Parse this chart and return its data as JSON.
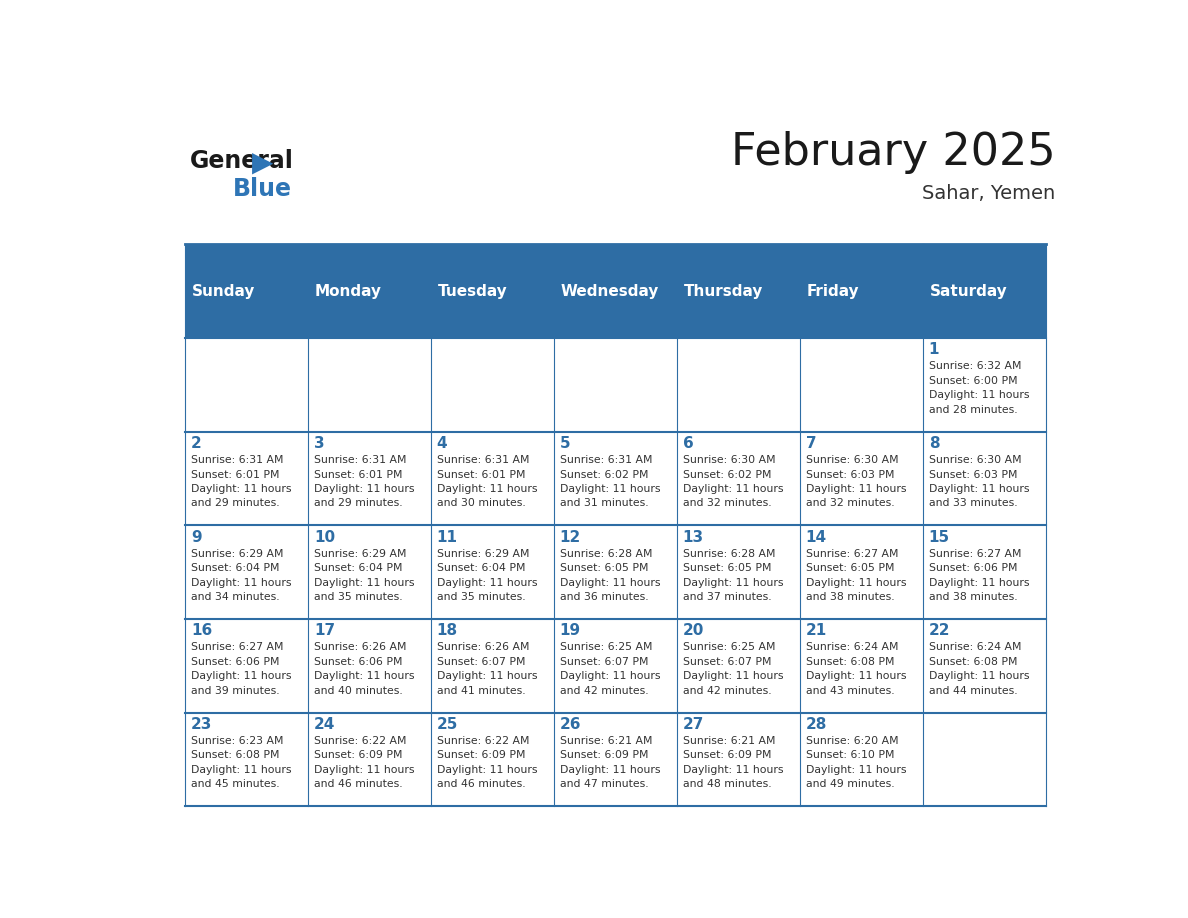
{
  "title": "February 2025",
  "subtitle": "Sahar, Yemen",
  "days_of_week": [
    "Sunday",
    "Monday",
    "Tuesday",
    "Wednesday",
    "Thursday",
    "Friday",
    "Saturday"
  ],
  "header_bg": "#2E6DA4",
  "header_text": "#FFFFFF",
  "cell_bg_light": "#FFFFFF",
  "day_number_color": "#2E6DA4",
  "info_text_color": "#333333",
  "border_color": "#2E6DA4",
  "title_color": "#1a1a1a",
  "subtitle_color": "#333333",
  "logo_general_color": "#1a1a1a",
  "logo_blue_color": "#2E75B6",
  "calendar_data": [
    [
      null,
      null,
      null,
      null,
      null,
      null,
      1
    ],
    [
      2,
      3,
      4,
      5,
      6,
      7,
      8
    ],
    [
      9,
      10,
      11,
      12,
      13,
      14,
      15
    ],
    [
      16,
      17,
      18,
      19,
      20,
      21,
      22
    ],
    [
      23,
      24,
      25,
      26,
      27,
      28,
      null
    ]
  ],
  "sunrise_data": {
    "1": "Sunrise: 6:32 AM\nSunset: 6:00 PM\nDaylight: 11 hours\nand 28 minutes.",
    "2": "Sunrise: 6:31 AM\nSunset: 6:01 PM\nDaylight: 11 hours\nand 29 minutes.",
    "3": "Sunrise: 6:31 AM\nSunset: 6:01 PM\nDaylight: 11 hours\nand 29 minutes.",
    "4": "Sunrise: 6:31 AM\nSunset: 6:01 PM\nDaylight: 11 hours\nand 30 minutes.",
    "5": "Sunrise: 6:31 AM\nSunset: 6:02 PM\nDaylight: 11 hours\nand 31 minutes.",
    "6": "Sunrise: 6:30 AM\nSunset: 6:02 PM\nDaylight: 11 hours\nand 32 minutes.",
    "7": "Sunrise: 6:30 AM\nSunset: 6:03 PM\nDaylight: 11 hours\nand 32 minutes.",
    "8": "Sunrise: 6:30 AM\nSunset: 6:03 PM\nDaylight: 11 hours\nand 33 minutes.",
    "9": "Sunrise: 6:29 AM\nSunset: 6:04 PM\nDaylight: 11 hours\nand 34 minutes.",
    "10": "Sunrise: 6:29 AM\nSunset: 6:04 PM\nDaylight: 11 hours\nand 35 minutes.",
    "11": "Sunrise: 6:29 AM\nSunset: 6:04 PM\nDaylight: 11 hours\nand 35 minutes.",
    "12": "Sunrise: 6:28 AM\nSunset: 6:05 PM\nDaylight: 11 hours\nand 36 minutes.",
    "13": "Sunrise: 6:28 AM\nSunset: 6:05 PM\nDaylight: 11 hours\nand 37 minutes.",
    "14": "Sunrise: 6:27 AM\nSunset: 6:05 PM\nDaylight: 11 hours\nand 38 minutes.",
    "15": "Sunrise: 6:27 AM\nSunset: 6:06 PM\nDaylight: 11 hours\nand 38 minutes.",
    "16": "Sunrise: 6:27 AM\nSunset: 6:06 PM\nDaylight: 11 hours\nand 39 minutes.",
    "17": "Sunrise: 6:26 AM\nSunset: 6:06 PM\nDaylight: 11 hours\nand 40 minutes.",
    "18": "Sunrise: 6:26 AM\nSunset: 6:07 PM\nDaylight: 11 hours\nand 41 minutes.",
    "19": "Sunrise: 6:25 AM\nSunset: 6:07 PM\nDaylight: 11 hours\nand 42 minutes.",
    "20": "Sunrise: 6:25 AM\nSunset: 6:07 PM\nDaylight: 11 hours\nand 42 minutes.",
    "21": "Sunrise: 6:24 AM\nSunset: 6:08 PM\nDaylight: 11 hours\nand 43 minutes.",
    "22": "Sunrise: 6:24 AM\nSunset: 6:08 PM\nDaylight: 11 hours\nand 44 minutes.",
    "23": "Sunrise: 6:23 AM\nSunset: 6:08 PM\nDaylight: 11 hours\nand 45 minutes.",
    "24": "Sunrise: 6:22 AM\nSunset: 6:09 PM\nDaylight: 11 hours\nand 46 minutes.",
    "25": "Sunrise: 6:22 AM\nSunset: 6:09 PM\nDaylight: 11 hours\nand 46 minutes.",
    "26": "Sunrise: 6:21 AM\nSunset: 6:09 PM\nDaylight: 11 hours\nand 47 minutes.",
    "27": "Sunrise: 6:21 AM\nSunset: 6:09 PM\nDaylight: 11 hours\nand 48 minutes.",
    "28": "Sunrise: 6:20 AM\nSunset: 6:10 PM\nDaylight: 11 hours\nand 49 minutes."
  }
}
